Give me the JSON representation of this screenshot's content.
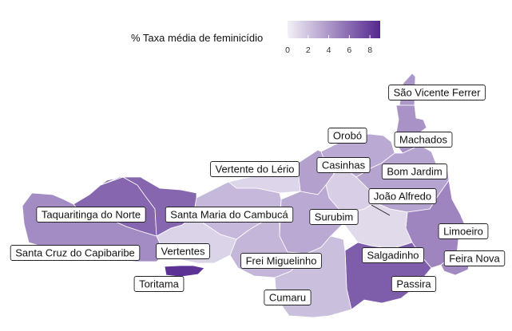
{
  "legend": {
    "title": "% Taxa média de feminicídio",
    "ticks": [
      "0",
      "2",
      "4",
      "6",
      "8"
    ],
    "scale_min": 0,
    "scale_max": 9,
    "color_low": "#f2f0f7",
    "color_high": "#54278f"
  },
  "municipalities": [
    {
      "name": "São Vicente Ferrer",
      "rate": 4.0
    },
    {
      "name": "Orobó",
      "rate": 3.2
    },
    {
      "name": "Machados",
      "rate": 4.2
    },
    {
      "name": "Vertente do Lério",
      "rate": 1.2
    },
    {
      "name": "Casinhas",
      "rate": 3.6
    },
    {
      "name": "Bom Jardim",
      "rate": 3.4
    },
    {
      "name": "João Alfredo",
      "rate": 1.5
    },
    {
      "name": "Taquaritinga do Norte",
      "rate": 6.2
    },
    {
      "name": "Santa Maria do Cambucá",
      "rate": 2.5
    },
    {
      "name": "Surubim",
      "rate": 3.2
    },
    {
      "name": "Limoeiro",
      "rate": 4.8
    },
    {
      "name": "Santa Cruz do Capibaribe",
      "rate": 4.5
    },
    {
      "name": "Vertentes",
      "rate": 1.3
    },
    {
      "name": "Frei Miguelinho",
      "rate": 2.6
    },
    {
      "name": "Salgadinho",
      "rate": 1.0
    },
    {
      "name": "Feira Nova",
      "rate": 4.6
    },
    {
      "name": "Toritama",
      "rate": 8.5
    },
    {
      "name": "Passira",
      "rate": 6.6
    },
    {
      "name": "Cumaru",
      "rate": 2.2
    }
  ]
}
